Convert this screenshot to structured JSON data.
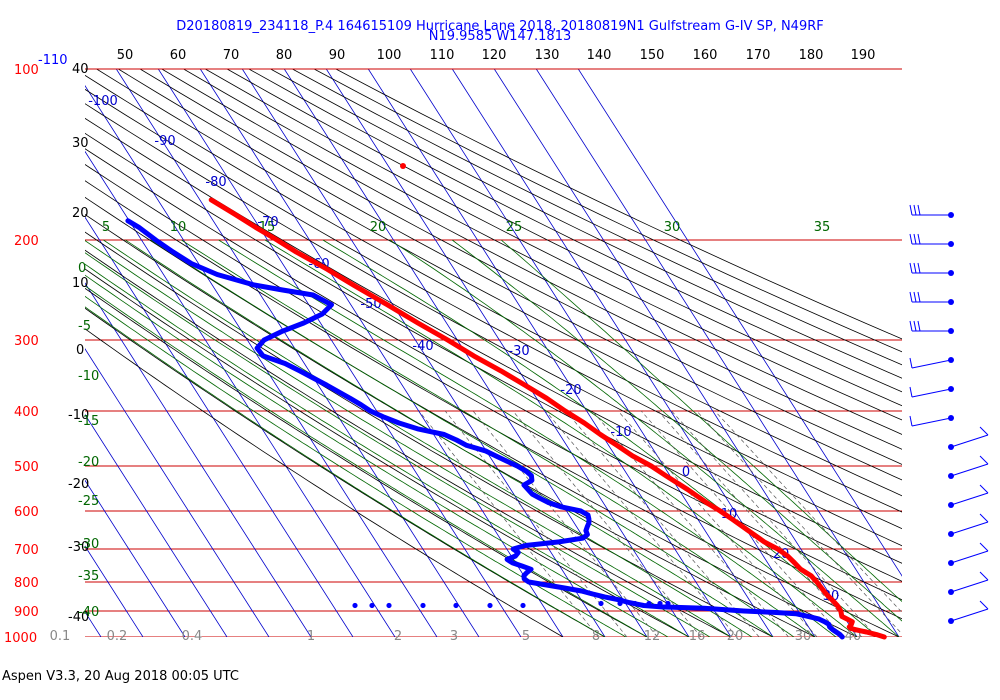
{
  "chart_data": {
    "type": "line",
    "title_line1": "D20180819_234118_P.4 164615109 Hurricane Lane 2018, 20180819N1 Gulfstream G-IV SP, N49RF",
    "title_line2": "N19.9585 W147.1813",
    "footer": "Aspen V3.3, 20 Aug 2018  00:05 UTC",
    "x_axis_top_ticks": [
      "50",
      "60",
      "70",
      "80",
      "90",
      "100",
      "110",
      "120",
      "130",
      "140",
      "150",
      "160",
      "170",
      "180",
      "190"
    ],
    "pressure_levels": [
      {
        "p": 100,
        "label": "100"
      },
      {
        "p": 200,
        "label": "200"
      },
      {
        "p": 300,
        "label": "300"
      },
      {
        "p": 400,
        "label": "400"
      },
      {
        "p": 500,
        "label": "500"
      },
      {
        "p": 600,
        "label": "600"
      },
      {
        "p": 700,
        "label": "700"
      },
      {
        "p": 800,
        "label": "800"
      },
      {
        "p": 900,
        "label": "900"
      },
      {
        "p": 1000,
        "label": "1000"
      }
    ],
    "left_top_label": "-110",
    "left_temp_ticks": [
      "40",
      "30",
      "20",
      "10",
      "0",
      "-10",
      "-20",
      "-30",
      "-40"
    ],
    "mixing_ratio_bottom": [
      "0.1",
      "0.2",
      "0.4",
      "1",
      "2",
      "3",
      "5",
      "8",
      "12",
      "16",
      "20",
      "30",
      "40"
    ],
    "theta_e_labels": [
      "5",
      "10",
      "15",
      "20",
      "25",
      "30",
      "35"
    ],
    "green_left_labels": [
      "0",
      "-5",
      "-10",
      "-15",
      "-20",
      "-25",
      "-30",
      "-35",
      "-40"
    ],
    "isotherm_labels": [
      "-100",
      "-90",
      "-80",
      "-70",
      "-60",
      "-50",
      "-40",
      "-30",
      "-20",
      "-10",
      "0",
      "10",
      "20",
      "30"
    ],
    "series": [
      {
        "name": "Temperature",
        "color": "#ff0000",
        "points": [
          [
            1000,
            26.5
          ],
          [
            990,
            25
          ],
          [
            980,
            23
          ],
          [
            975,
            21.8
          ],
          [
            970,
            20.6
          ],
          [
            965,
            19.8
          ],
          [
            960,
            19.7
          ],
          [
            950,
            20.6
          ],
          [
            940,
            21.2
          ],
          [
            930,
            20.4
          ],
          [
            920,
            19.5
          ],
          [
            900,
            20.1
          ],
          [
            880,
            20.1
          ],
          [
            860,
            19.7
          ],
          [
            840,
            19.2
          ],
          [
            820,
            19.0
          ],
          [
            800,
            18.8
          ],
          [
            780,
            18.4
          ],
          [
            760,
            16.9
          ],
          [
            740,
            16.4
          ],
          [
            720,
            15.8
          ],
          [
            700,
            14.5
          ],
          [
            680,
            12.4
          ],
          [
            650,
            10.3
          ],
          [
            620,
            8.2
          ],
          [
            600,
            6.6
          ],
          [
            580,
            4.6
          ],
          [
            550,
            2.1
          ],
          [
            520,
            -1.0
          ],
          [
            500,
            -3.0
          ],
          [
            480,
            -5.9
          ],
          [
            460,
            -8.0
          ],
          [
            440,
            -10.3
          ],
          [
            420,
            -12.4
          ],
          [
            400,
            -15.1
          ],
          [
            380,
            -17.6
          ],
          [
            360,
            -20.8
          ],
          [
            340,
            -24.3
          ],
          [
            320,
            -28.5
          ],
          [
            300,
            -32.3
          ],
          [
            280,
            -36.8
          ],
          [
            260,
            -41.3
          ],
          [
            240,
            -46.4
          ],
          [
            225,
            -50.3
          ],
          [
            210,
            -55.0
          ],
          [
            200,
            -57.7
          ],
          [
            190,
            -60.9
          ],
          [
            180,
            -63.9
          ],
          [
            170,
            -67.3
          ]
        ]
      },
      {
        "name": "Dew point",
        "color": "#0000ff",
        "points": [
          [
            1000,
            16.5
          ],
          [
            990,
            16.3
          ],
          [
            980,
            15.8
          ],
          [
            970,
            15.3
          ],
          [
            960,
            15.0
          ],
          [
            950,
            15.2
          ],
          [
            940,
            14.6
          ],
          [
            930,
            13.7
          ],
          [
            920,
            11.5
          ],
          [
            910,
            9.0
          ],
          [
            905,
            4
          ],
          [
            900,
            -3
          ],
          [
            890,
            -12
          ],
          [
            885,
            -22
          ],
          [
            880,
            -26
          ],
          [
            870,
            -29
          ],
          [
            860,
            -31
          ],
          [
            850,
            -34.0
          ],
          [
            840,
            -36.4
          ],
          [
            830,
            -38.6
          ],
          [
            820,
            -42.2
          ],
          [
            810,
            -46
          ],
          [
            800,
            -49.8
          ],
          [
            790,
            -50.4
          ],
          [
            780,
            -50.0
          ],
          [
            770,
            -48.8
          ],
          [
            760,
            -47.3
          ],
          [
            750,
            -49.0
          ],
          [
            740,
            -50.8
          ],
          [
            730,
            -51.5
          ],
          [
            720,
            -49.0
          ],
          [
            710,
            -47.8
          ],
          [
            700,
            -48.5
          ],
          [
            690,
            -45.0
          ],
          [
            680,
            -36.5
          ],
          [
            670,
            -30.3
          ],
          [
            660,
            -28.6
          ],
          [
            650,
            -28.4
          ],
          [
            640,
            -27.5
          ],
          [
            630,
            -26.5
          ],
          [
            620,
            -25.9
          ],
          [
            610,
            -25.5
          ],
          [
            600,
            -26.6
          ],
          [
            590,
            -30.7
          ],
          [
            580,
            -33.0
          ],
          [
            570,
            -34.4
          ],
          [
            560,
            -35.6
          ],
          [
            550,
            -35.9
          ],
          [
            540,
            -36.2
          ],
          [
            530,
            -33.6
          ],
          [
            520,
            -33.0
          ],
          [
            510,
            -33.6
          ],
          [
            500,
            -34.9
          ],
          [
            490,
            -36.7
          ],
          [
            480,
            -38.5
          ],
          [
            470,
            -40.2
          ],
          [
            460,
            -43.8
          ],
          [
            450,
            -45.4
          ],
          [
            440,
            -47.5
          ],
          [
            430,
            -53.0
          ],
          [
            420,
            -56.5
          ],
          [
            410,
            -59.2
          ],
          [
            400,
            -61.5
          ],
          [
            390,
            -62.8
          ],
          [
            380,
            -64.4
          ],
          [
            370,
            -66.2
          ],
          [
            360,
            -68.0
          ],
          [
            350,
            -70.1
          ],
          [
            340,
            -72.2
          ],
          [
            330,
            -74.6
          ],
          [
            320,
            -78.7
          ],
          [
            310,
            -78.9
          ],
          [
            300,
            -76.0
          ],
          [
            290,
            -70.6
          ],
          [
            280,
            -64.0
          ],
          [
            270,
            -58.2
          ],
          [
            260,
            -54.6
          ],
          [
            250,
            -57.5
          ],
          [
            245,
            -64.0
          ],
          [
            240,
            -70.0
          ],
          [
            230,
            -77.2
          ],
          [
            220,
            -81.7
          ],
          [
            210,
            -84.3
          ],
          [
            200,
            -86.6
          ],
          [
            190,
            -88.7
          ],
          [
            185,
            -90.3
          ]
        ]
      }
    ],
    "isolated_point": {
      "p": 150,
      "t": -72,
      "color": "#ff0000"
    },
    "wind_barbs": {
      "color": "#0000ff",
      "count": 15
    },
    "colors": {
      "isobar": "#cc0000",
      "isotherm": "#0000cc",
      "dry_adiabat": "#000000",
      "moist_adiabat": "#006600",
      "mixing_ratio": "#555555",
      "title": "#0000ff"
    }
  }
}
